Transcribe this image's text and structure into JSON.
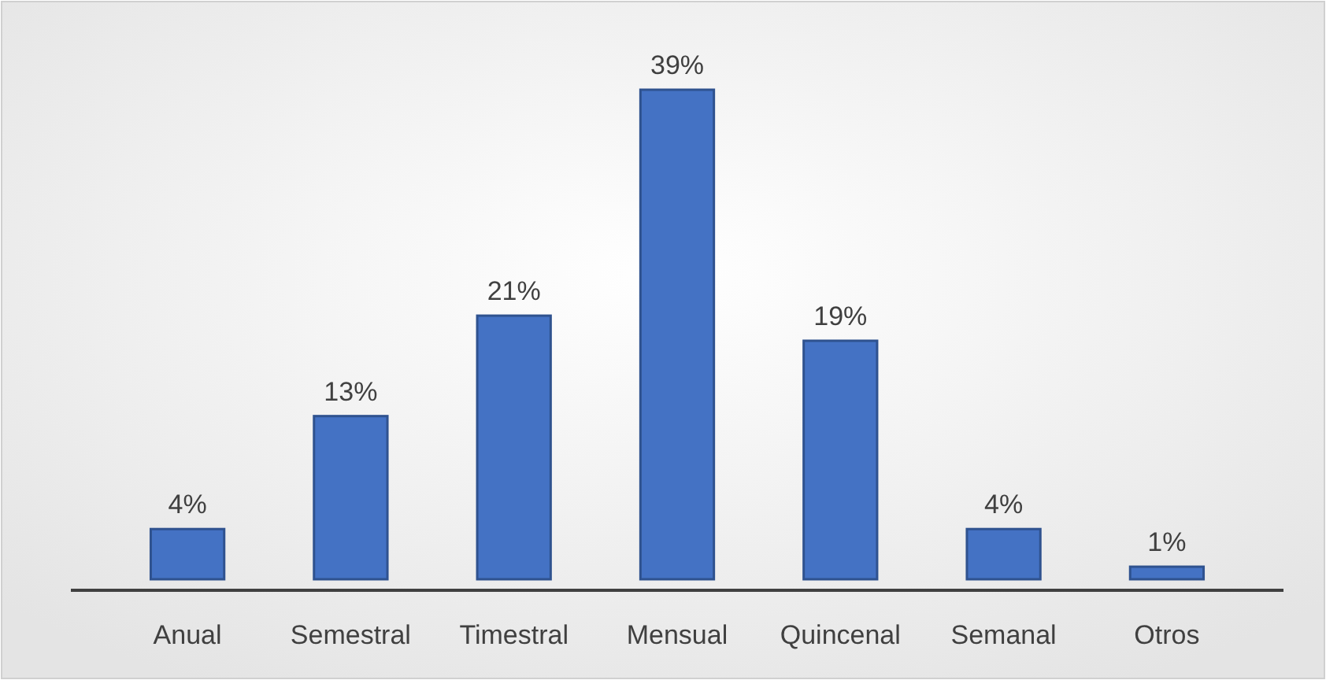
{
  "chart_data": {
    "type": "bar",
    "categories": [
      "Anual",
      "Semestral",
      "Timestral",
      "Mensual",
      "Quincenal",
      "Semanal",
      "Otros"
    ],
    "values": [
      4,
      13,
      21,
      39,
      19,
      4,
      1
    ],
    "value_labels": [
      "4%",
      "13%",
      "21%",
      "39%",
      "19%",
      "4%",
      "1%"
    ],
    "color": "#4472c4"
  }
}
